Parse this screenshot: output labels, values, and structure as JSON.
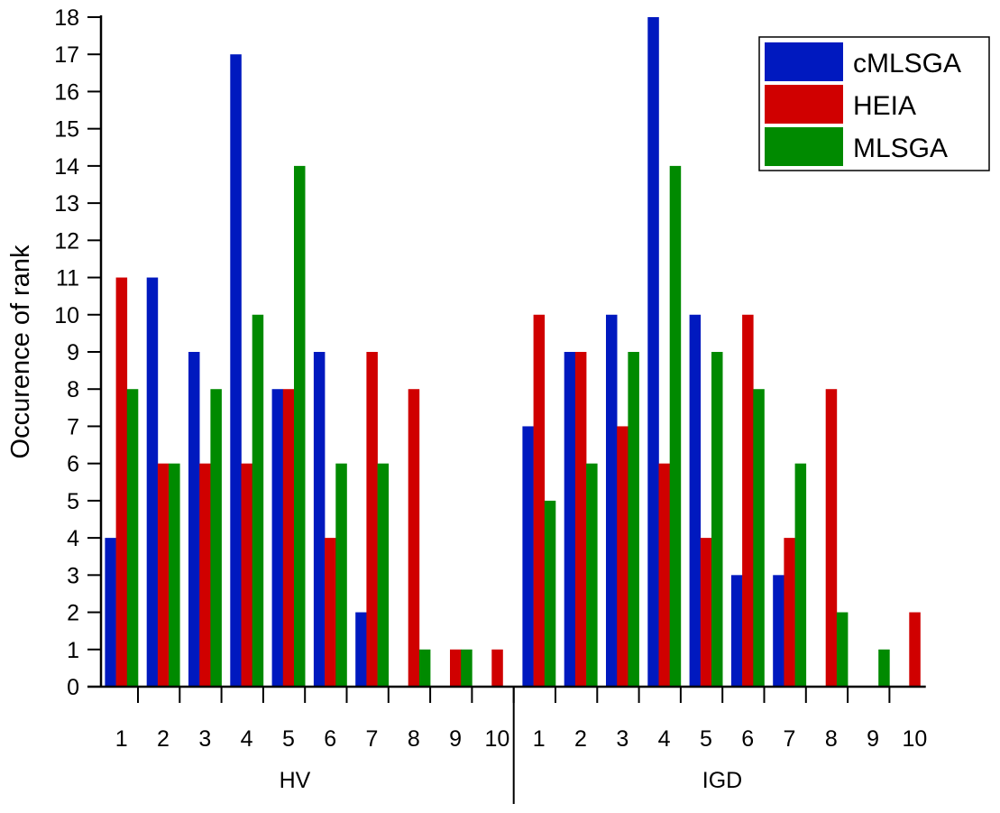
{
  "chart_data": {
    "type": "bar",
    "title": "",
    "ylabel": "Occurence of rank",
    "xlabel": "",
    "ylim": [
      0,
      18
    ],
    "yticks": [
      "0",
      "1",
      "2",
      "3",
      "4",
      "5",
      "6",
      "7",
      "8",
      "9",
      "10",
      "11",
      "12",
      "13",
      "14",
      "15",
      "16",
      "17",
      "18"
    ],
    "grid": false,
    "legend_position": "top-right",
    "groups": [
      {
        "label": "HV",
        "categories": [
          "1",
          "2",
          "3",
          "4",
          "5",
          "6",
          "7",
          "8",
          "9",
          "10"
        ]
      },
      {
        "label": "IGD",
        "categories": [
          "1",
          "2",
          "3",
          "4",
          "5",
          "6",
          "7",
          "8",
          "9",
          "10"
        ]
      }
    ],
    "series": [
      {
        "name": "cMLSGA",
        "color": "#0019BF",
        "values": [
          4,
          11,
          9,
          17,
          8,
          9,
          2,
          0,
          0,
          0,
          7,
          9,
          10,
          18,
          10,
          3,
          3,
          0,
          0,
          0
        ]
      },
      {
        "name": "HEIA",
        "color": "#D00000",
        "values": [
          11,
          6,
          6,
          6,
          8,
          4,
          9,
          8,
          1,
          1,
          10,
          9,
          7,
          6,
          4,
          10,
          4,
          8,
          0,
          2
        ]
      },
      {
        "name": "MLSGA",
        "color": "#008A00",
        "values": [
          8,
          6,
          8,
          10,
          14,
          6,
          6,
          1,
          1,
          0,
          5,
          6,
          9,
          14,
          9,
          8,
          6,
          2,
          1,
          0
        ]
      }
    ]
  }
}
